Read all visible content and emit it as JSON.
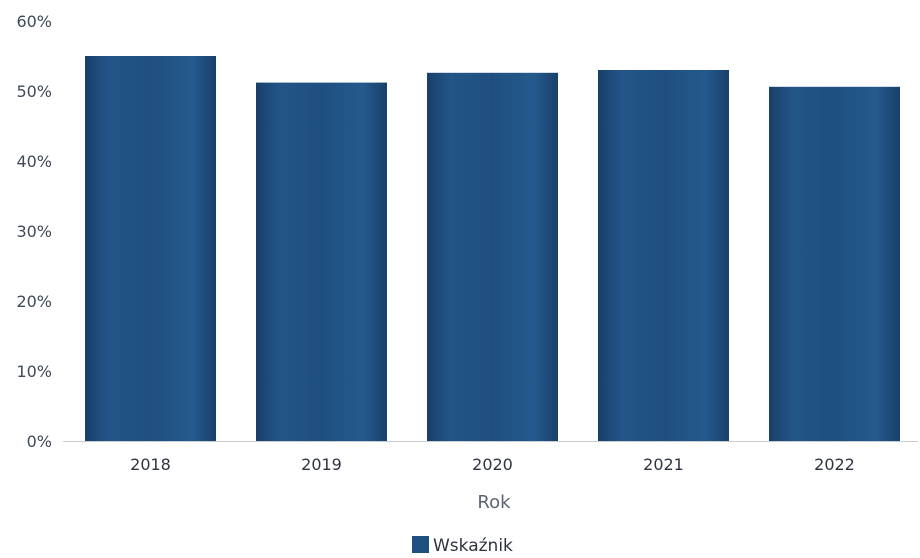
{
  "chart_data": {
    "type": "bar",
    "categories": [
      "2018",
      "2019",
      "2020",
      "2021",
      "2022"
    ],
    "series": [
      {
        "name": "Wskaźnik",
        "values": [
          55,
          51.2,
          52.6,
          53,
          50.6
        ]
      }
    ],
    "xlabel": "Rok",
    "ylabel": "",
    "ylim": [
      0,
      60
    ],
    "yticks": [
      "0%",
      "10%",
      "20%",
      "30%",
      "40%",
      "50%",
      "60%"
    ],
    "grid": false,
    "legend": "bottom-center",
    "colors": {
      "bar": "#1f4f80",
      "bar_dark": "#173f69",
      "bar_light": "#2a5f95",
      "baseline": "#c9ccd1"
    }
  }
}
